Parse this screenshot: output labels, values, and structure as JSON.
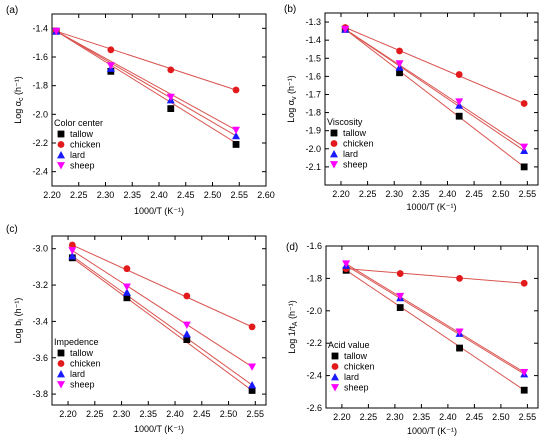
{
  "colors": {
    "tallow": "#000000",
    "chicken": "#e31a1c",
    "lard": "#1a1aff",
    "sheep": "#ff00ff",
    "fit_line": "#d9534f"
  },
  "chart_data": [
    {
      "type": "scatter",
      "panel_label": "(a)",
      "ylabel": "Log αc (h⁻¹)",
      "ylabel_main": "Log α",
      "ylabel_sub": "c",
      "ylabel_unit": " (h⁻¹)",
      "xlabel": "1000/T (K⁻¹)",
      "xlim": [
        2.2,
        2.6
      ],
      "ylim": [
        -2.5,
        -1.3
      ],
      "xticks": [
        2.2,
        2.25,
        2.3,
        2.35,
        2.4,
        2.45,
        2.5,
        2.55,
        2.6
      ],
      "xtick_labels": [
        "2.20",
        "2.25",
        "2.30",
        "2.35",
        "2.40",
        "2.45",
        "2.50",
        "2.55",
        "2.60"
      ],
      "yticks": [
        -2.4,
        -2.2,
        -2.0,
        -1.8,
        -1.6,
        -1.4
      ],
      "ytick_labels": [
        "-2.4",
        "-2.2",
        "-2.0",
        "-1.8",
        "-1.6",
        "-1.4"
      ],
      "legend_title": "Color center",
      "legend_position": "bottom-left",
      "x": [
        2.208,
        2.31,
        2.422,
        2.544
      ],
      "series": [
        {
          "name": "tallow",
          "marker": "square",
          "values": [
            -1.42,
            -1.7,
            -1.96,
            -2.21
          ]
        },
        {
          "name": "chicken",
          "marker": "circle",
          "values": [
            -1.42,
            -1.55,
            -1.69,
            -1.83
          ]
        },
        {
          "name": "lard",
          "marker": "triangle",
          "values": [
            -1.42,
            -1.68,
            -1.9,
            -2.15
          ]
        },
        {
          "name": "sheep",
          "marker": "tri-down",
          "values": [
            -1.42,
            -1.66,
            -1.88,
            -2.11
          ]
        }
      ],
      "fits": [
        {
          "series": "tallow",
          "y": [
            -1.42,
            -2.2
          ]
        },
        {
          "series": "chicken",
          "y": [
            -1.42,
            -1.83
          ]
        },
        {
          "series": "lard",
          "y": [
            -1.42,
            -2.15
          ]
        },
        {
          "series": "sheep",
          "y": [
            -1.42,
            -2.11
          ]
        }
      ]
    },
    {
      "type": "scatter",
      "panel_label": "(b)",
      "ylabel": "Log αv (h⁻¹)",
      "ylabel_main": "Log α",
      "ylabel_sub": "v",
      "ylabel_unit": " (h⁻¹)",
      "xlabel": "1000/T (K⁻¹)",
      "xlim": [
        2.17,
        2.57
      ],
      "ylim": [
        -2.2,
        -1.25
      ],
      "xticks": [
        2.2,
        2.25,
        2.3,
        2.35,
        2.4,
        2.45,
        2.5,
        2.55
      ],
      "xtick_labels": [
        "2.20",
        "2.25",
        "2.30",
        "2.35",
        "2.40",
        "2.45",
        "2.50",
        "2.55"
      ],
      "yticks": [
        -2.1,
        -2.0,
        -1.9,
        -1.8,
        -1.7,
        -1.6,
        -1.5,
        -1.4,
        -1.3
      ],
      "ytick_labels": [
        "-2.1",
        "-2.0",
        "-1.9",
        "-1.8",
        "-1.7",
        "-1.6",
        "-1.5",
        "-1.4",
        "-1.3"
      ],
      "legend_title": "Viscosity",
      "legend_position": "bottom-left",
      "x": [
        2.208,
        2.31,
        2.422,
        2.544
      ],
      "series": [
        {
          "name": "tallow",
          "marker": "square",
          "values": [
            -1.34,
            -1.58,
            -1.82,
            -2.1
          ]
        },
        {
          "name": "chicken",
          "marker": "circle",
          "values": [
            -1.33,
            -1.46,
            -1.59,
            -1.75
          ]
        },
        {
          "name": "lard",
          "marker": "triangle",
          "values": [
            -1.34,
            -1.55,
            -1.76,
            -2.01
          ]
        },
        {
          "name": "sheep",
          "marker": "tri-down",
          "values": [
            -1.34,
            -1.53,
            -1.74,
            -1.99
          ]
        }
      ],
      "fits": [
        {
          "series": "tallow",
          "y": [
            -1.34,
            -2.1
          ]
        },
        {
          "series": "chicken",
          "y": [
            -1.33,
            -1.75
          ]
        },
        {
          "series": "lard",
          "y": [
            -1.34,
            -2.01
          ]
        },
        {
          "series": "sheep",
          "y": [
            -1.34,
            -1.99
          ]
        }
      ]
    },
    {
      "type": "scatter",
      "panel_label": "(c)",
      "ylabel": "Log bI (h⁻¹)",
      "ylabel_main": "Log b",
      "ylabel_sub": "I",
      "ylabel_unit": " (h⁻¹)",
      "xlabel": "1000/T (K⁻¹)",
      "xlim": [
        2.17,
        2.57
      ],
      "ylim": [
        -3.86,
        -2.93
      ],
      "xticks": [
        2.2,
        2.25,
        2.3,
        2.35,
        2.4,
        2.45,
        2.5,
        2.55
      ],
      "xtick_labels": [
        "2.20",
        "2.25",
        "2.30",
        "2.35",
        "2.40",
        "2.45",
        "2.50",
        "2.55"
      ],
      "yticks": [
        -3.8,
        -3.6,
        -3.4,
        -3.2,
        -3.0
      ],
      "ytick_labels": [
        "-3.8",
        "-3.6",
        "-3.4",
        "-3.2",
        "-3.0"
      ],
      "legend_title": "Impedence",
      "legend_position": "bottom-left",
      "x": [
        2.208,
        2.31,
        2.422,
        2.544
      ],
      "series": [
        {
          "name": "tallow",
          "marker": "square",
          "values": [
            -3.05,
            -3.27,
            -3.5,
            -3.78
          ]
        },
        {
          "name": "chicken",
          "marker": "circle",
          "values": [
            -2.98,
            -3.11,
            -3.26,
            -3.43
          ]
        },
        {
          "name": "lard",
          "marker": "triangle",
          "values": [
            -3.04,
            -3.24,
            -3.47,
            -3.75
          ]
        },
        {
          "name": "sheep",
          "marker": "tri-down",
          "values": [
            -3.01,
            -3.21,
            -3.42,
            -3.65
          ]
        }
      ],
      "fits": [
        {
          "series": "tallow",
          "y": [
            -3.05,
            -3.78
          ]
        },
        {
          "series": "chicken",
          "y": [
            -2.98,
            -3.43
          ]
        },
        {
          "series": "lard",
          "y": [
            -3.04,
            -3.75
          ]
        },
        {
          "series": "sheep",
          "y": [
            -3.01,
            -3.65
          ]
        }
      ]
    },
    {
      "type": "scatter",
      "panel_label": "(d)",
      "ylabel": "Log 1/tA (h⁻¹)",
      "ylabel_main": "Log 1/t",
      "ylabel_sub": "A",
      "ylabel_unit": " (h⁻¹)",
      "xlabel": "1000/T (K⁻¹)",
      "xlim": [
        2.17,
        2.57
      ],
      "ylim": [
        -2.6,
        -1.6
      ],
      "xticks": [
        2.2,
        2.25,
        2.3,
        2.35,
        2.4,
        2.45,
        2.5,
        2.55
      ],
      "xtick_labels": [
        "2.20",
        "2.25",
        "2.30",
        "2.35",
        "2.40",
        "2.45",
        "2.50",
        "2.55"
      ],
      "yticks": [
        -2.6,
        -2.4,
        -2.2,
        -2.0,
        -1.8,
        -1.6
      ],
      "ytick_labels": [
        "-2.6",
        "-2.4",
        "-2.2",
        "-2.0",
        "-1.8",
        "-1.6"
      ],
      "legend_title": "Acid value",
      "legend_position": "bottom-left",
      "x": [
        2.208,
        2.31,
        2.422,
        2.544
      ],
      "series": [
        {
          "name": "tallow",
          "marker": "square",
          "values": [
            -1.75,
            -1.98,
            -2.23,
            -2.49
          ]
        },
        {
          "name": "chicken",
          "marker": "circle",
          "values": [
            -1.74,
            -1.77,
            -1.8,
            -1.83
          ]
        },
        {
          "name": "lard",
          "marker": "triangle",
          "values": [
            -1.72,
            -1.92,
            -2.14,
            -2.39
          ]
        },
        {
          "name": "sheep",
          "marker": "tri-down",
          "values": [
            -1.71,
            -1.91,
            -2.13,
            -2.38
          ]
        }
      ],
      "fits": [
        {
          "series": "tallow",
          "y": [
            -1.75,
            -2.49
          ]
        },
        {
          "series": "chicken",
          "y": [
            -1.74,
            -1.83
          ]
        },
        {
          "series": "lard",
          "y": [
            -1.72,
            -2.39
          ]
        },
        {
          "series": "sheep",
          "y": [
            -1.71,
            -2.38
          ]
        }
      ]
    }
  ]
}
